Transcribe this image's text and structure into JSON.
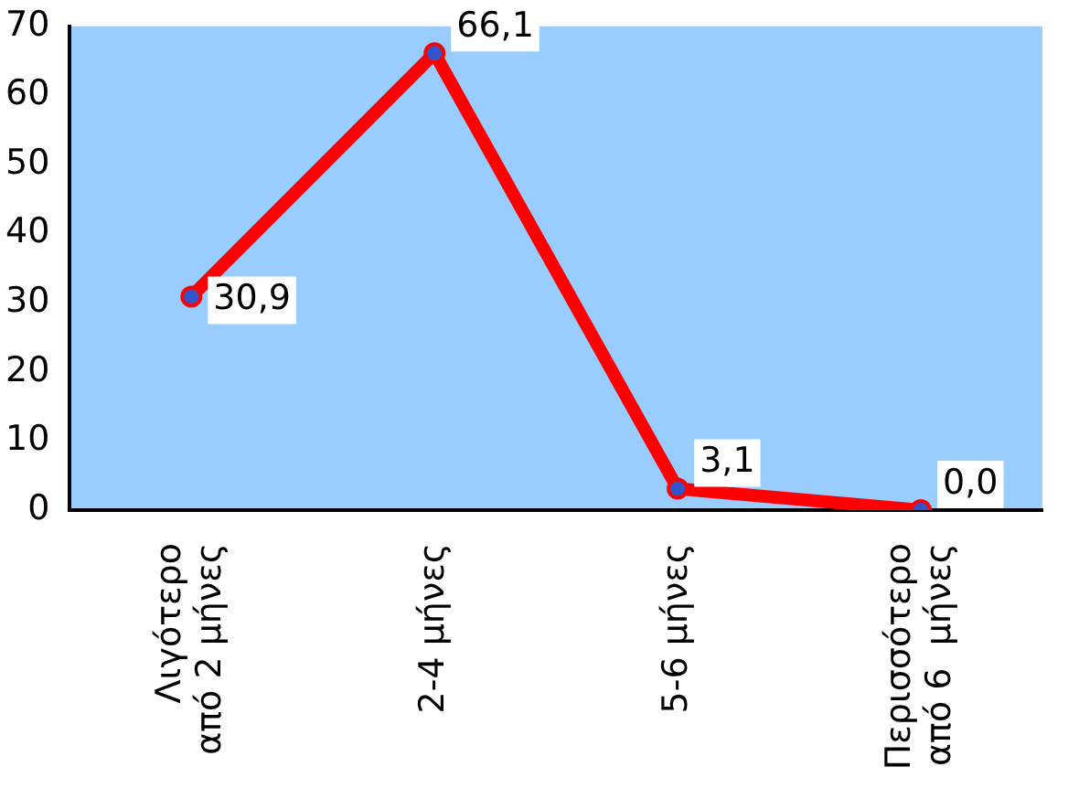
{
  "chart_data": {
    "type": "line",
    "categories": [
      "Λιγότερο\nαπό 2 μήνες",
      "2-4 μήνες",
      "5-6 μήνες",
      "Περισσότερο\nαπό 6  μήνες"
    ],
    "series": [
      {
        "color": "#ff0000",
        "values": [
          30.9,
          66.1,
          3.1,
          0.0
        ],
        "value_labels": [
          "30,9",
          "66,1",
          "3,1",
          "0,0"
        ]
      }
    ],
    "ylim": [
      0,
      70
    ],
    "yticks": [
      0,
      10,
      20,
      30,
      40,
      50,
      60,
      70
    ],
    "grid": false,
    "legend": false,
    "marker": "circle",
    "line_style": "solid"
  }
}
